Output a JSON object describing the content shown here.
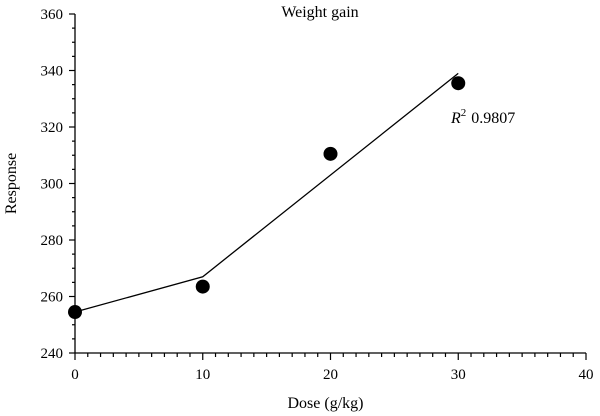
{
  "chart_data": {
    "type": "scatter",
    "title": "Weight gain",
    "xlabel": "Dose (g/kg)",
    "ylabel": "Response",
    "xlim": [
      0,
      40
    ],
    "ylim": [
      240,
      360
    ],
    "xticks": [
      0,
      10,
      20,
      30,
      40
    ],
    "yticks": [
      240,
      260,
      280,
      300,
      320,
      340,
      360
    ],
    "grid": false,
    "series": [
      {
        "x": [
          0,
          10,
          20,
          30
        ],
        "y": [
          254.5,
          263.5,
          310.5,
          335.5
        ]
      }
    ],
    "fit_line": {
      "x": [
        0,
        10,
        30
      ],
      "y": [
        254.5,
        267,
        339
      ]
    },
    "annotation": {
      "label": "R",
      "superscript": "2",
      "value": "0.9807"
    }
  }
}
